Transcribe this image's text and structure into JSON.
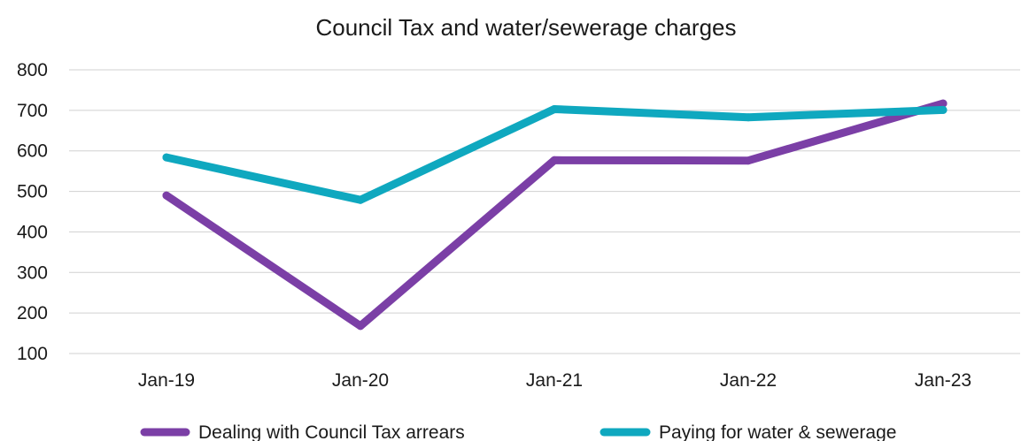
{
  "chart_data": {
    "type": "line",
    "title": "Council Tax and water/sewerage charges",
    "xlabel": "",
    "ylabel": "",
    "categories": [
      "Jan-19",
      "Jan-20",
      "Jan-21",
      "Jan-22",
      "Jan-23"
    ],
    "ylim": [
      100,
      800
    ],
    "yticks": [
      100,
      200,
      300,
      400,
      500,
      600,
      700,
      800
    ],
    "grid": true,
    "legend_position": "bottom",
    "series": [
      {
        "name": "Dealing with Council Tax arrears",
        "color": "#7b3fa6",
        "values": [
          490,
          168,
          577,
          576,
          717
        ]
      },
      {
        "name": "Paying for water & sewerage",
        "color": "#0fa8bf",
        "values": [
          584,
          479,
          703,
          683,
          701
        ]
      }
    ]
  }
}
